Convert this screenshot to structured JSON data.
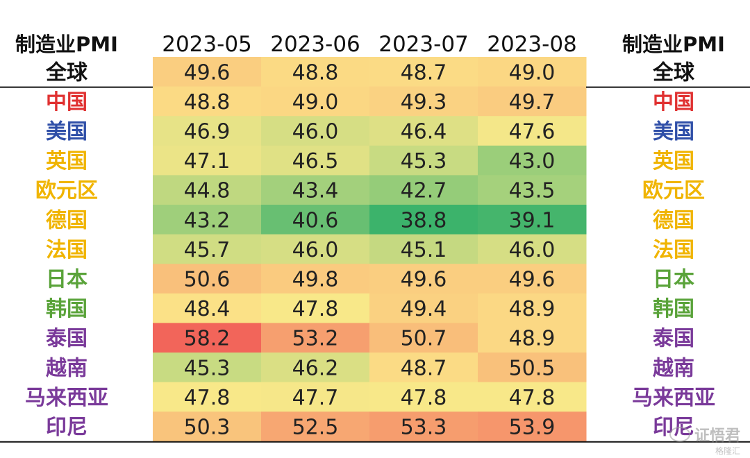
{
  "chart_data": {
    "type": "heatmap",
    "header_label": "制造业PMI",
    "periods": [
      "2023-05",
      "2023-06",
      "2023-07",
      "2023-08"
    ],
    "rows": [
      {
        "name": "全球",
        "color": "#111111",
        "values": [
          49.6,
          48.8,
          48.7,
          49.0
        ]
      },
      {
        "name": "中国",
        "color": "#e03131",
        "values": [
          48.8,
          49.0,
          49.3,
          49.7
        ]
      },
      {
        "name": "美国",
        "color": "#2f4fa8",
        "values": [
          46.9,
          46.0,
          46.4,
          47.6
        ]
      },
      {
        "name": "英国",
        "color": "#f0b400",
        "values": [
          47.1,
          46.5,
          45.3,
          43.0
        ]
      },
      {
        "name": "欧元区",
        "color": "#f0b400",
        "values": [
          44.8,
          43.4,
          42.7,
          43.5
        ]
      },
      {
        "name": "德国",
        "color": "#f0b400",
        "values": [
          43.2,
          40.6,
          38.8,
          39.1
        ]
      },
      {
        "name": "法国",
        "color": "#f0b400",
        "values": [
          45.7,
          46.0,
          45.1,
          46.0
        ]
      },
      {
        "name": "日本",
        "color": "#5aa33a",
        "values": [
          50.6,
          49.8,
          49.6,
          49.6
        ]
      },
      {
        "name": "韩国",
        "color": "#5aa33a",
        "values": [
          48.4,
          47.8,
          49.4,
          48.9
        ]
      },
      {
        "name": "泰国",
        "color": "#7a3a9a",
        "values": [
          58.2,
          53.2,
          50.7,
          48.9
        ]
      },
      {
        "name": "越南",
        "color": "#7a3a9a",
        "values": [
          45.3,
          46.2,
          48.7,
          50.5
        ]
      },
      {
        "name": "马来西亚",
        "color": "#7a3a9a",
        "values": [
          47.8,
          47.7,
          47.8,
          47.8
        ]
      },
      {
        "name": "印尼",
        "color": "#7a3a9a",
        "values": [
          50.3,
          52.5,
          53.3,
          53.9
        ]
      }
    ],
    "colorscale": {
      "low": "#3cb36b",
      "mid": "#fce98a",
      "high": "#f2655a",
      "min": 38.8,
      "mid_value": 48.0,
      "max": 58.2
    }
  },
  "watermark": {
    "text": "证悟君",
    "sub": "格隆汇"
  }
}
